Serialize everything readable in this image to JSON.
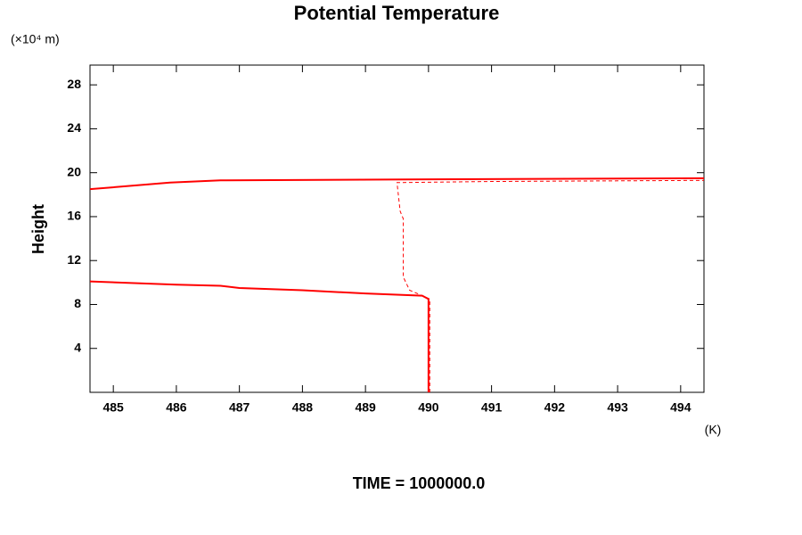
{
  "chart_data": {
    "type": "line",
    "title": "Potential Temperature",
    "ylabel": "Height",
    "yunit": "(×10⁴ m)",
    "xunit": "(K)",
    "footer": "TIME = 1000000.0",
    "xlim": [
      484.63,
      494.37
    ],
    "xticks": [
      485,
      486,
      487,
      488,
      489,
      490,
      491,
      492,
      493,
      494
    ],
    "ylim": [
      0,
      29.8
    ],
    "yticks": [
      4,
      8,
      12,
      16,
      20,
      24,
      28
    ],
    "series": [
      {
        "color": "#ff0000",
        "dash": false,
        "x": [
          490,
          490,
          489.9,
          489,
          488,
          487,
          486.7,
          486,
          484.63,
          null,
          484.63,
          485.9,
          486.7,
          490,
          494.37
        ],
        "values": [
          0,
          8.5,
          8.8,
          9.0,
          9.3,
          9.5,
          9.7,
          9.8,
          10.1,
          null,
          18.5,
          19.1,
          19.3,
          19.4,
          19.5
        ]
      },
      {
        "color": "#ff0000",
        "dash": true,
        "x": [
          490.02,
          490.02,
          489.9,
          489.7,
          489.6,
          489.6,
          489.55,
          489.5,
          491,
          494.37
        ],
        "values": [
          0,
          8.5,
          8.8,
          9.3,
          10.5,
          15.8,
          16.5,
          19.1,
          19.2,
          19.3
        ]
      }
    ]
  }
}
